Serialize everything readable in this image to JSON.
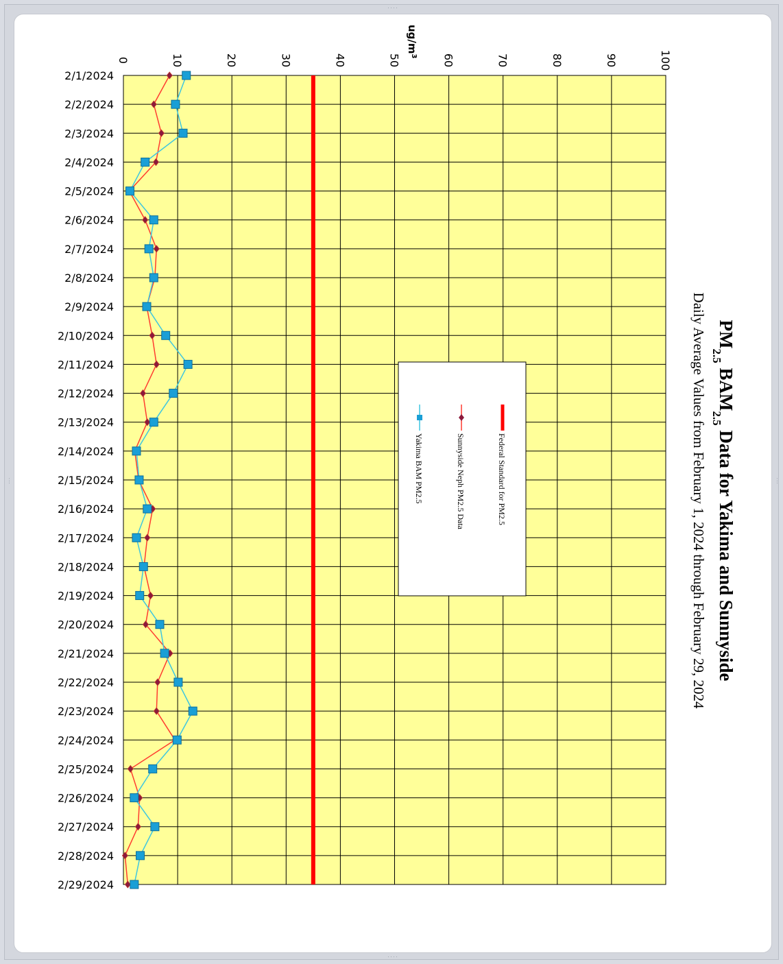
{
  "chart_data": {
    "type": "line",
    "title": "PM2.5 BAM2.5 Data for Yakima and Sunnyside",
    "title_parts": {
      "a": "PM",
      "a_sub": "2.5",
      "b": " BAM",
      "b_sub": "2.5",
      "c": " Data for Yakima and Sunnyside"
    },
    "subtitle": "Daily Average Values from February 1, 2024 through February 29, 2024",
    "ylabel": "ug/m",
    "ylabel_sup": "3",
    "ylim": [
      0,
      100
    ],
    "yticks": [
      "0",
      "10",
      "20",
      "30",
      "40",
      "50",
      "60",
      "70",
      "80",
      "90",
      "100"
    ],
    "legend_position": "center",
    "categories": [
      "2/1/2024",
      "2/2/2024",
      "2/3/2024",
      "2/4/2024",
      "2/5/2024",
      "2/6/2024",
      "2/7/2024",
      "2/8/2024",
      "2/9/2024",
      "2/10/2024",
      "2/11/2024",
      "2/12/2024",
      "2/13/2024",
      "2/14/2024",
      "2/15/2024",
      "2/16/2024",
      "2/17/2024",
      "2/18/2024",
      "2/19/2024",
      "2/20/2024",
      "2/21/2024",
      "2/22/2024",
      "2/23/2024",
      "2/24/2024",
      "2/25/2024",
      "2/26/2024",
      "2/27/2024",
      "2/28/2024",
      "2/29/2024"
    ],
    "standard": {
      "name": "Federal Standard for PM2.5",
      "value": 35,
      "color": "#ff0000"
    },
    "series": [
      {
        "name": "Sunnyside Neph PM2.5 Data",
        "color": "#ff3b30",
        "marker_color": "#8b1a3c",
        "values": [
          8.5,
          5.6,
          7,
          6,
          1.1,
          4,
          6.1,
          5.8,
          4.3,
          5.3,
          6.1,
          3.6,
          4.4,
          2.1,
          2.8,
          5.4,
          4.4,
          3.8,
          5,
          4.1,
          8.6,
          6.3,
          6.1,
          9.5,
          1.3,
          3,
          2.7,
          0.3,
          0.8
        ]
      },
      {
        "name": "Yakima BAM PM2.5",
        "color": "#3ec6e0",
        "marker_color": "#1a9fd6",
        "values": [
          11.6,
          9.6,
          11,
          4,
          1.2,
          5.6,
          4.7,
          5.6,
          4.3,
          7.8,
          11.9,
          9.2,
          5.6,
          2.4,
          2.9,
          4.4,
          2.4,
          3.7,
          3,
          6.7,
          7.6,
          10.1,
          12.8,
          9.9,
          5.4,
          2,
          5.8,
          3.1,
          2
        ]
      }
    ],
    "plot_bg": "#ffff99",
    "grid": true
  }
}
